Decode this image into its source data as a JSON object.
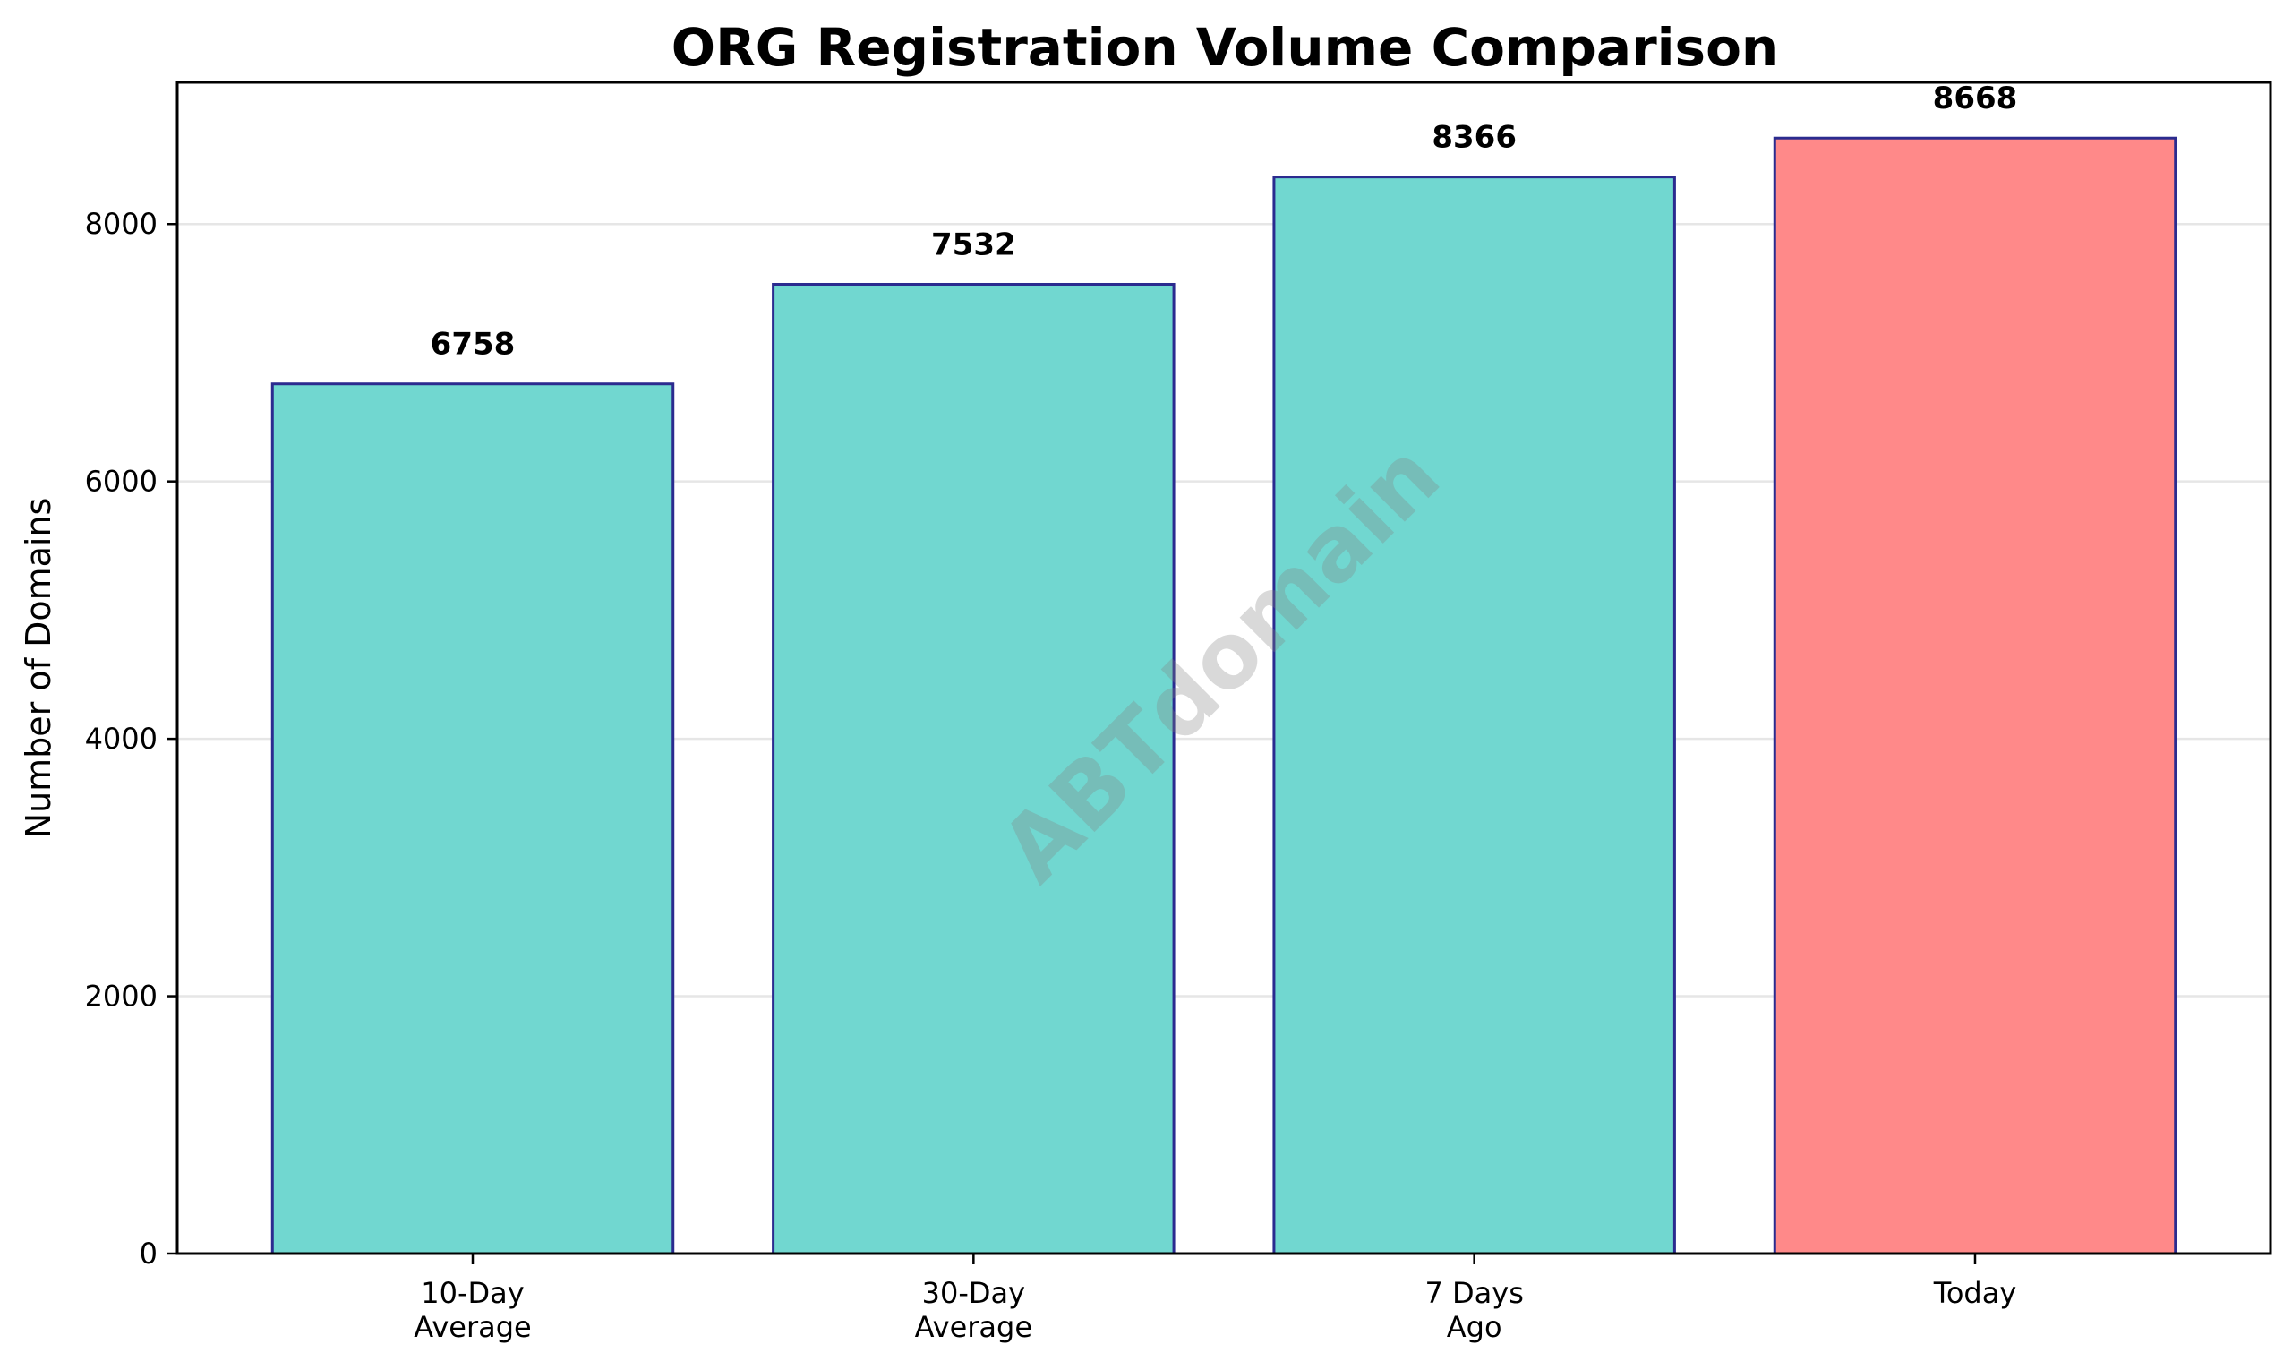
{
  "chart_data": {
    "type": "bar",
    "title": "ORG Registration Volume Comparison",
    "xlabel": "",
    "ylabel": "Number of Domains",
    "categories": [
      "10-Day\nAverage",
      "30-Day\nAverage",
      "7 Days\nAgo",
      "Today"
    ],
    "values": [
      6758,
      7532,
      8366,
      8668
    ],
    "value_labels": [
      "6758",
      "7532",
      "8366",
      "8668"
    ],
    "bar_colors": [
      "#71D7D0",
      "#71D7D0",
      "#71D7D0",
      "#FF8989"
    ],
    "edge_color": "#2B2B8F",
    "highlighted_category": "Today",
    "ylim": [
      0,
      9101
    ],
    "yticks": [
      0,
      2000,
      4000,
      6000,
      8000
    ],
    "ytick_labels": [
      "0",
      "2000",
      "4000",
      "6000",
      "8000"
    ],
    "grid": {
      "axis": "y",
      "color": "#E6E6E6"
    },
    "legend": null,
    "watermark": "ABTdomain"
  }
}
